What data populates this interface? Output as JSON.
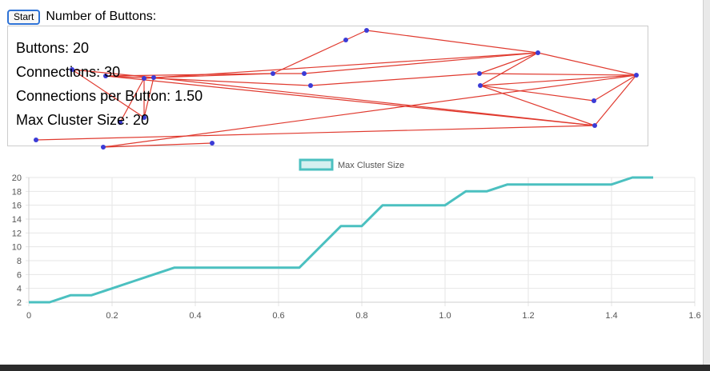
{
  "controls": {
    "start_label": "Start",
    "num_buttons_label": "Number of Buttons:"
  },
  "stats": {
    "buttons": "Buttons: 20",
    "connections": "Connections: 30",
    "per_button": "Connections per Button: 1.50",
    "max_cluster": "Max Cluster Size: 20"
  },
  "colors": {
    "node": "#3b3bd6",
    "edge": "#e03a2f",
    "series": "#4bc0c0",
    "series_fill": "#d5f0f0",
    "grid": "#e6e6e6",
    "panel_border": "#cccccc"
  },
  "chart_data": {
    "type": "line",
    "legend_position": "top",
    "grid": true,
    "xlim": [
      0,
      1.6
    ],
    "ylim": [
      2,
      20
    ],
    "x_ticks": [
      "0",
      "0.2",
      "0.4",
      "0.6",
      "0.8",
      "1.0",
      "1.2",
      "1.4",
      "1.6"
    ],
    "y_ticks": [
      "2",
      "4",
      "6",
      "8",
      "10",
      "12",
      "14",
      "16",
      "18",
      "20"
    ],
    "series": [
      {
        "name": "Max Cluster Size",
        "x": [
          0,
          0.05,
          0.1,
          0.15,
          0.2,
          0.25,
          0.3,
          0.35,
          0.4,
          0.45,
          0.5,
          0.55,
          0.6,
          0.65,
          0.7,
          0.75,
          0.8,
          0.85,
          0.9,
          0.95,
          1.0,
          1.05,
          1.1,
          1.15,
          1.2,
          1.25,
          1.3,
          1.35,
          1.4,
          1.45,
          1.5
        ],
        "y": [
          2,
          2,
          3,
          3,
          4,
          5,
          6,
          7,
          7,
          7,
          7,
          7,
          7,
          7,
          10,
          13,
          13,
          16,
          16,
          16,
          16,
          18,
          18,
          19,
          19,
          19,
          19,
          19,
          19,
          20,
          20
        ]
      }
    ]
  }
}
